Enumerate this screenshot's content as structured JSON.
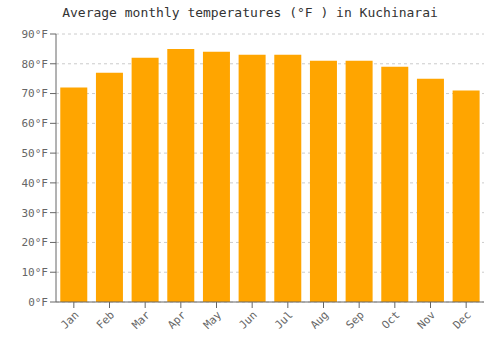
{
  "chart_data": {
    "type": "bar",
    "title": "Average monthly temperatures (°F ) in Kuchinarai",
    "categories": [
      "Jan",
      "Feb",
      "Mar",
      "Apr",
      "May",
      "Jun",
      "Jul",
      "Aug",
      "Sep",
      "Oct",
      "Nov",
      "Dec"
    ],
    "values": [
      72,
      77,
      82,
      85,
      84,
      83,
      83,
      81,
      81,
      79,
      75,
      71
    ],
    "color": "#FFA500",
    "ylim": [
      0,
      90
    ],
    "yticks": [
      {
        "value": 0,
        "label": "0°F"
      },
      {
        "value": 10,
        "label": "10°F"
      },
      {
        "value": 20,
        "label": "20°F"
      },
      {
        "value": 30,
        "label": "30°F"
      },
      {
        "value": 40,
        "label": "40°F"
      },
      {
        "value": 50,
        "label": "50°F"
      },
      {
        "value": 60,
        "label": "60°F"
      },
      {
        "value": 70,
        "label": "70°F"
      },
      {
        "value": 80,
        "label": "80°F"
      },
      {
        "value": 90,
        "label": "90°F"
      }
    ],
    "grid": true
  }
}
